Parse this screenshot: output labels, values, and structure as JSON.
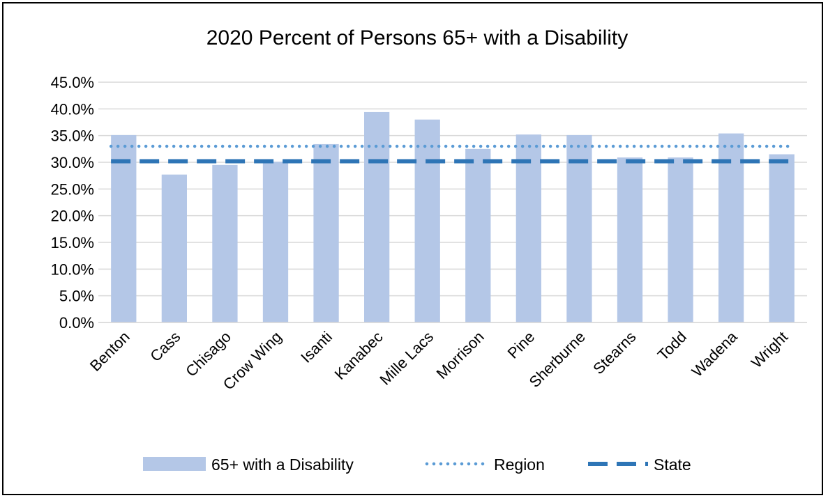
{
  "chart_data": {
    "type": "bar",
    "title": "2020 Percent of Persons 65+ with a Disability",
    "xlabel": "",
    "ylabel": "",
    "ylim": [
      0,
      45
    ],
    "y_ticks": [
      "0.0%",
      "5.0%",
      "10.0%",
      "15.0%",
      "20.0%",
      "25.0%",
      "30.0%",
      "35.0%",
      "40.0%",
      "45.0%"
    ],
    "categories": [
      "Benton",
      "Cass",
      "Chisago",
      "Crow Wing",
      "Isanti",
      "Kanabec",
      "Mille Lacs",
      "Morrison",
      "Pine",
      "Sherburne",
      "Stearns",
      "Todd",
      "Wadena",
      "Wright"
    ],
    "series": [
      {
        "name": "65+ with a Disability",
        "type": "bar",
        "color": "#b4c7e7",
        "values": [
          35.1,
          27.7,
          29.5,
          30.1,
          33.4,
          39.4,
          38.0,
          32.5,
          35.2,
          35.1,
          30.9,
          30.9,
          35.4,
          31.5
        ]
      },
      {
        "name": "Region",
        "type": "line",
        "style": "dotted",
        "color": "#5b9bd5",
        "value": 33.0
      },
      {
        "name": "State",
        "type": "line",
        "style": "dashed",
        "color": "#2e75b6",
        "value": 30.2
      }
    ],
    "grid": true,
    "legend_position": "bottom"
  }
}
